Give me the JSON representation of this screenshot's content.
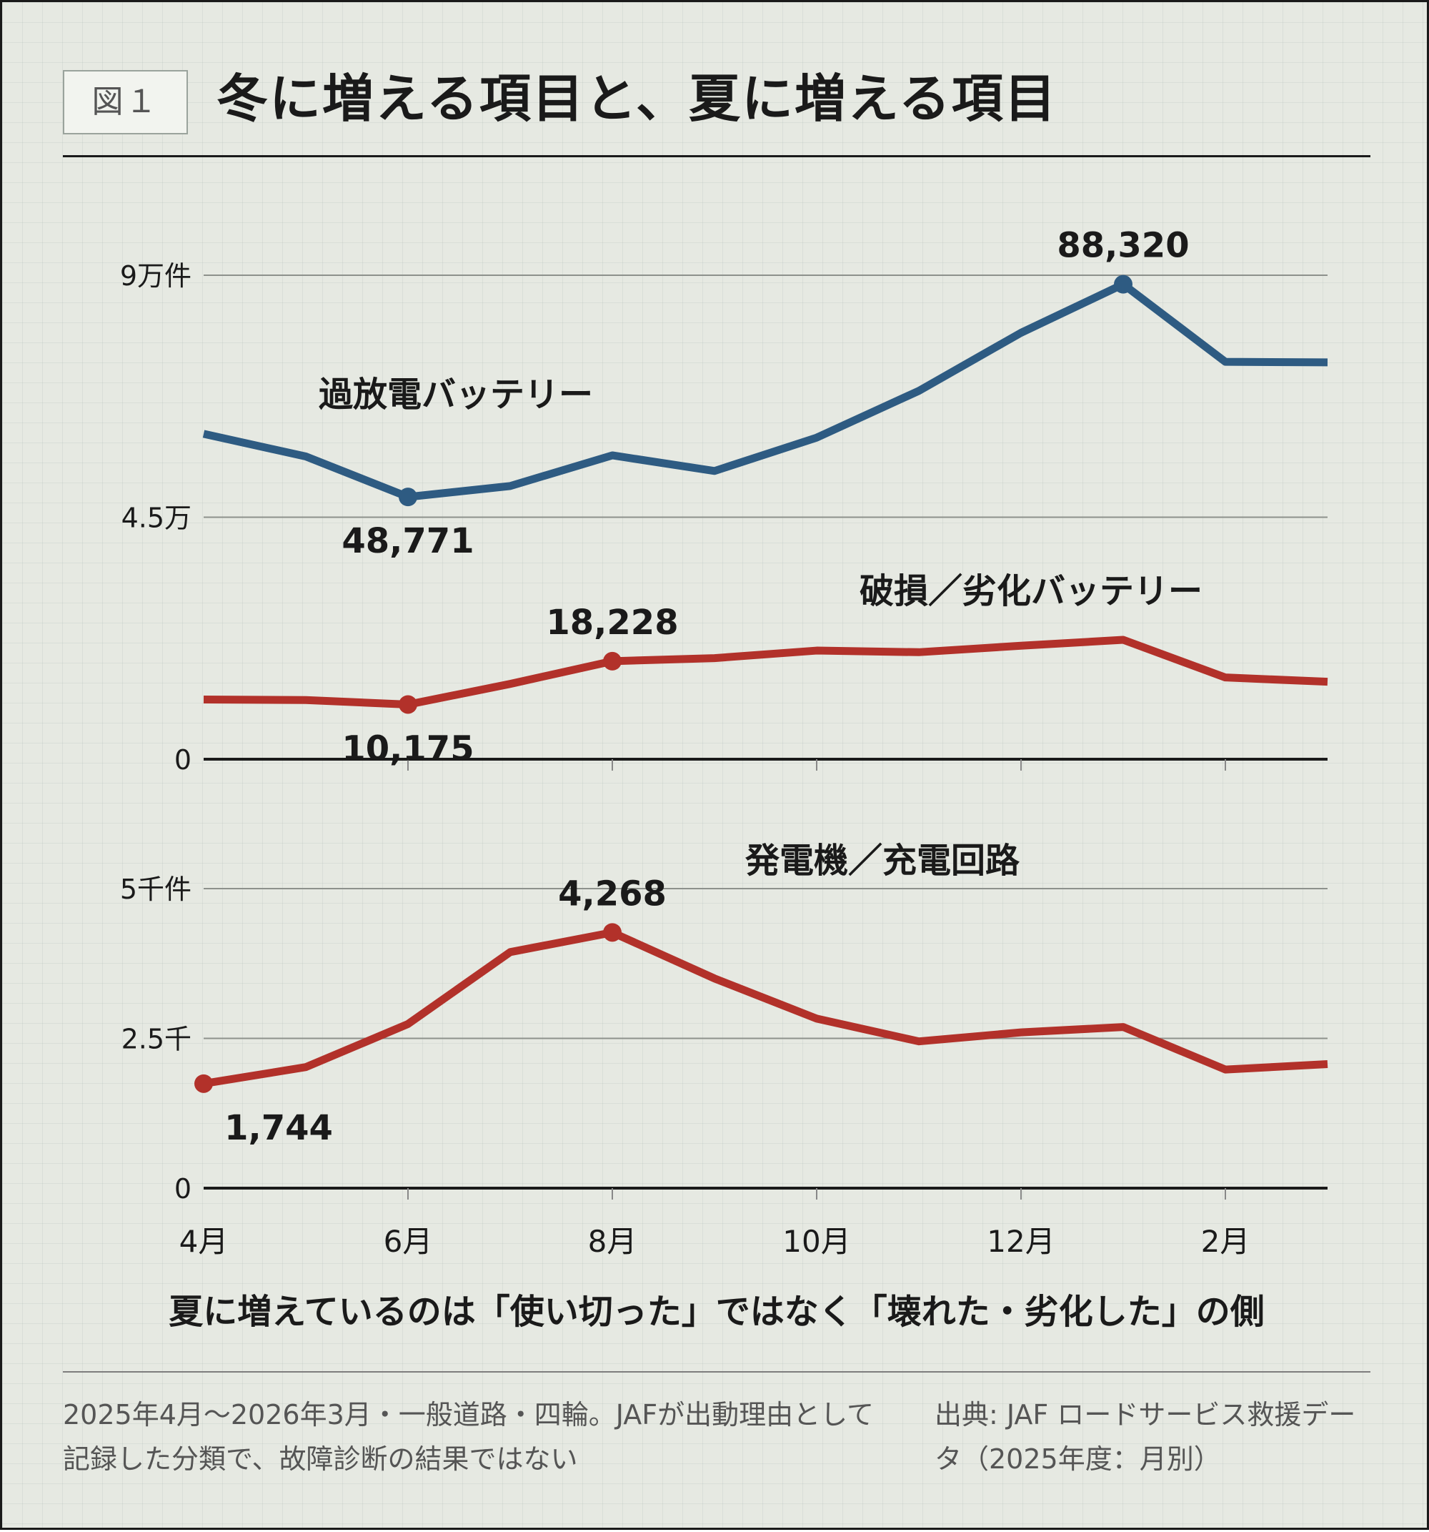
{
  "header": {
    "figure_badge": "図１",
    "title": "冬に増える項目と、夏に増える項目"
  },
  "chart_data": [
    {
      "type": "line",
      "x": [
        "4月",
        "5月",
        "6月",
        "7月",
        "8月",
        "9月",
        "10月",
        "11月",
        "12月",
        "1月",
        "2月",
        "3月"
      ],
      "x_tick_labels": [
        "4月",
        "6月",
        "8月",
        "10月",
        "12月",
        "2月"
      ],
      "y_tick_labels": [
        "9万件",
        "4.5万",
        "0"
      ],
      "y_ticks": [
        90000,
        45000,
        0
      ],
      "ylim": [
        0,
        90000
      ],
      "grid": true,
      "series": [
        {
          "name": "過放電バッテリー",
          "color": "#2e5b82",
          "values": [
            60500,
            56300,
            48771,
            50800,
            56500,
            53600,
            59800,
            68500,
            79300,
            88320,
            73900,
            73800
          ],
          "highlight": [
            {
              "index": 2,
              "label": "48,771",
              "pos": "below"
            },
            {
              "index": 9,
              "label": "88,320",
              "pos": "above"
            }
          ]
        },
        {
          "name": "破損／劣化バッテリー",
          "color": "#b2312a",
          "values": [
            11100,
            11000,
            10175,
            14000,
            18228,
            18800,
            20200,
            19900,
            21100,
            22200,
            15200,
            14400
          ],
          "highlight": [
            {
              "index": 2,
              "label": "10,175",
              "pos": "below"
            },
            {
              "index": 4,
              "label": "18,228",
              "pos": "above"
            }
          ]
        }
      ]
    },
    {
      "type": "line",
      "x": [
        "4月",
        "5月",
        "6月",
        "7月",
        "8月",
        "9月",
        "10月",
        "11月",
        "12月",
        "1月",
        "2月",
        "3月"
      ],
      "x_tick_labels": [
        "4月",
        "6月",
        "8月",
        "10月",
        "12月",
        "2月"
      ],
      "y_tick_labels": [
        "5千件",
        "2.5千",
        "0"
      ],
      "y_ticks": [
        5000,
        2500,
        0
      ],
      "ylim": [
        0,
        5000
      ],
      "grid": true,
      "series": [
        {
          "name": "発電機／充電回路",
          "color": "#b2312a",
          "values": [
            1744,
            2020,
            2740,
            3940,
            4268,
            3500,
            2830,
            2450,
            2600,
            2690,
            1980,
            2070
          ],
          "highlight": [
            {
              "index": 0,
              "label": "1,744",
              "pos": "below"
            },
            {
              "index": 4,
              "label": "4,268",
              "pos": "above"
            }
          ]
        }
      ]
    }
  ],
  "caption": "夏に増えているのは「使い切った」ではなく「壊れた・劣化した」の側",
  "footnote": "2025年4月～2026年3月・一般道路・四輪。JAFが出動理由として記録した分類で、故障診断の結果ではない",
  "source": "出典: JAF ロードサービス救援データ（2025年度：月別）"
}
